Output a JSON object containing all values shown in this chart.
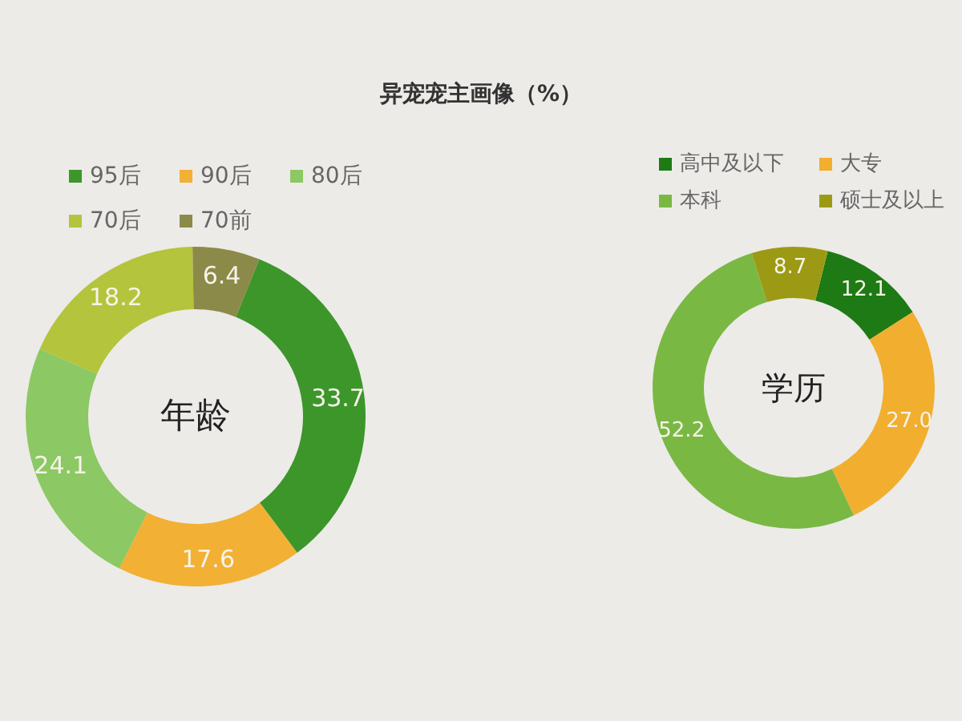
{
  "chart_data": [
    {
      "type": "donut",
      "title": "异宠宠主画像（%）",
      "annotations": [
        "年龄"
      ],
      "categories": [
        "95后",
        "90后",
        "80后",
        "70后",
        "70前"
      ],
      "values": [
        33.7,
        17.6,
        24.1,
        18.2,
        6.4
      ],
      "colors": [
        "#3c962a",
        "#f2b035",
        "#8cc863",
        "#b4c43c",
        "#8c8a48"
      ],
      "data_labels": true,
      "legend": "top"
    },
    {
      "type": "donut",
      "annotations": [
        "学历"
      ],
      "categories": [
        "高中及以下",
        "大专",
        "本科",
        "硕士及以上"
      ],
      "values": [
        12.1,
        27.0,
        52.2,
        8.7
      ],
      "value_labels": [
        "12.1",
        "27.0",
        "52.2",
        "8.7"
      ],
      "colors": [
        "#1e7a14",
        "#f2ae2e",
        "#7ab844",
        "#9c9a14"
      ],
      "legend": "top"
    }
  ]
}
